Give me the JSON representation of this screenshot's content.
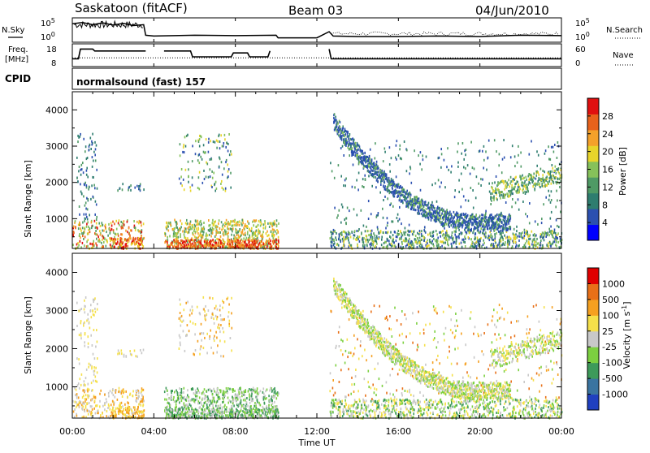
{
  "header": {
    "station": "Saskatoon (fitACF)",
    "beam": "Beam 03",
    "date": "04/Jun/2010"
  },
  "side_labels": {
    "nsky": "N.Sky",
    "nsearch": "N.Search",
    "freq_line1": "Freq.",
    "freq_line2": "[MHz]",
    "nave": "Nave",
    "cpid": "CPID",
    "cpid_value": "normalsound (fast) 157"
  },
  "chart_data": [
    {
      "type": "line",
      "name": "noise",
      "left_ticks": [
        "10^5",
        "10^0"
      ],
      "right_ticks": [
        "10^5",
        "10^0"
      ],
      "x": [
        0,
        0.5,
        1,
        1.5,
        2,
        2.5,
        3,
        3.5,
        3.6,
        4,
        6,
        8,
        10,
        10.1,
        12,
        12.6,
        12.8,
        14,
        16,
        18,
        20,
        22,
        24
      ],
      "nsky": [
        4.2,
        4.5,
        4.0,
        4.4,
        3.9,
        4.3,
        3.8,
        4.0,
        1.6,
        1.4,
        1.6,
        1.5,
        1.6,
        1.0,
        1.0,
        2.4,
        1.4,
        1.3,
        1.3,
        1.4,
        1.3,
        1.6,
        1.5
      ]
    },
    {
      "type": "line",
      "name": "freq-nave",
      "left_ticks": [
        "18",
        "8"
      ],
      "right_ticks": [
        "60",
        "0"
      ],
      "freq_x": [
        0,
        0.3,
        0.4,
        1.0,
        1.1,
        3.6,
        3.7,
        4.4,
        4.5,
        5.8,
        5.9,
        7.8,
        7.9,
        8.6,
        8.7,
        9.6,
        9.7,
        10.1,
        12.6,
        12.7,
        24
      ],
      "freq": [
        12,
        12,
        17,
        17,
        16,
        16,
        null,
        null,
        16,
        16,
        13,
        13,
        15,
        15,
        13,
        13,
        16,
        null,
        17,
        12,
        12
      ],
      "nave_level": 12.5
    },
    {
      "type": "heatmap",
      "name": "power",
      "ylabel": "Slant Range [km]",
      "yticks": [
        1000,
        2000,
        3000,
        4000
      ],
      "ylim": [
        180,
        4500
      ],
      "colorbar_label": "Power [dB]",
      "colorbar_ticks": [
        "28",
        "24",
        "20",
        "16",
        "12",
        "8",
        "4"
      ]
    },
    {
      "type": "heatmap",
      "name": "velocity",
      "ylabel": "Slant Range [km]",
      "yticks": [
        1000,
        2000,
        3000,
        4000
      ],
      "ylim": [
        180,
        4500
      ],
      "colorbar_label": "Velocity [m s^-1]",
      "colorbar_ticks": [
        "1000",
        "500",
        "100",
        "25",
        "-25",
        "-100",
        "-500",
        "-1000"
      ],
      "xlabel": "Time UT",
      "xticks": [
        "00:00",
        "04:00",
        "08:00",
        "12:00",
        "16:00",
        "20:00",
        "00:00"
      ],
      "xlim": [
        0,
        24
      ]
    }
  ],
  "colors": {
    "power_scale": [
      "#0000ff",
      "#2b50b0",
      "#2e7d6f",
      "#4f9a65",
      "#86c15a",
      "#e8d52a",
      "#f4a12a",
      "#e8621c",
      "#e01010"
    ],
    "velocity_scale": [
      "#2040c0",
      "#3a74a0",
      "#3d9a5a",
      "#7cd040",
      "#c8c8c8",
      "#f5e04a",
      "#f5a020",
      "#e87018",
      "#e00000"
    ]
  }
}
